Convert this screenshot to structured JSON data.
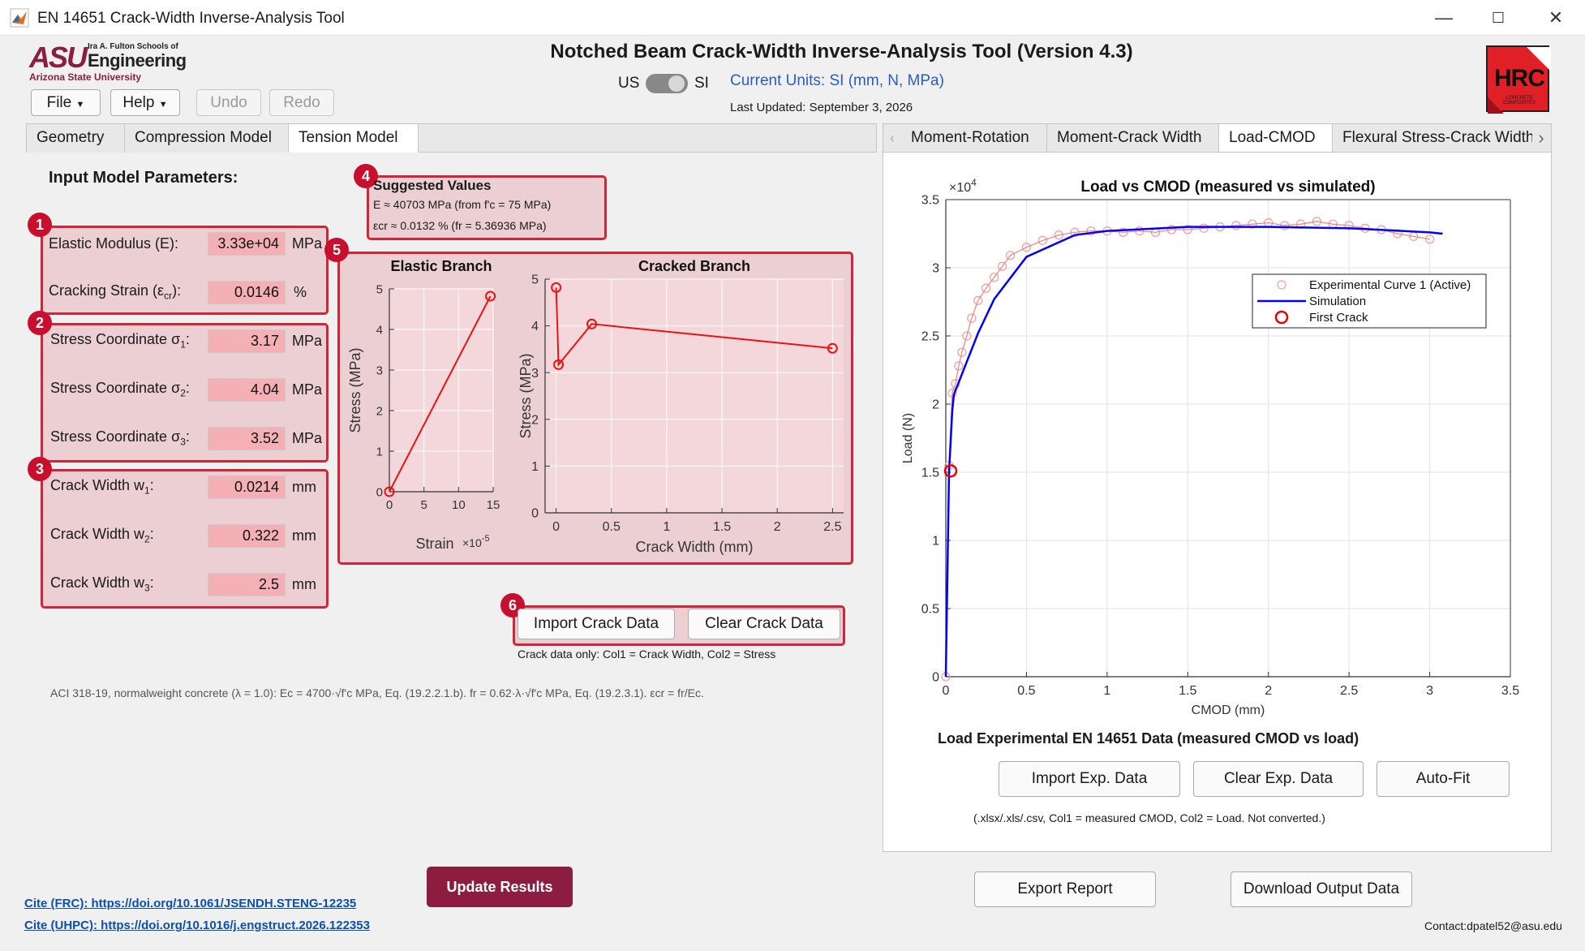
{
  "window": {
    "title": "EN 14651 Crack-Width Inverse-Analysis Tool"
  },
  "logo": {
    "asu": "ASU",
    "school_line1": "Ira A. Fulton Schools of",
    "school_line2": "Engineering",
    "university": "Arizona State University",
    "hrc": "HRC",
    "hrc_small": "CONCRETE COMPOSITES"
  },
  "app": {
    "title": "Notched Beam Crack-Width Inverse-Analysis Tool (Version 4.3)",
    "unit_us": "US",
    "unit_si": "SI",
    "current_units": "Current Units: SI (mm, N, MPa)",
    "last_updated": "Last Updated: September 3, 2026"
  },
  "toolbar": {
    "file": "File",
    "help": "Help",
    "undo": "Undo",
    "redo": "Redo"
  },
  "left_tabs": [
    "Geometry",
    "Compression Model",
    "Tension Model"
  ],
  "left_panel": {
    "heading": "Input Model Parameters:",
    "badges": [
      "1",
      "2",
      "3",
      "4",
      "5",
      "6"
    ],
    "elastic_modulus": {
      "label": "Elastic Modulus (E):",
      "value": "3.33e+04",
      "unit": "MPa"
    },
    "cracking_strain": {
      "label_pre": "Cracking Strain (ε",
      "label_sub": "cr",
      "label_post": "):",
      "value": "0.0146",
      "unit": "%"
    },
    "sigma1": {
      "label_pre": "Stress Coordinate σ",
      "label_sub": "1",
      "label_post": ":",
      "value": "3.17",
      "unit": "MPa"
    },
    "sigma2": {
      "label_pre": "Stress Coordinate σ",
      "label_sub": "2",
      "label_post": ":",
      "value": "4.04",
      "unit": "MPa"
    },
    "sigma3": {
      "label_pre": "Stress Coordinate σ",
      "label_sub": "3",
      "label_post": ":",
      "value": "3.52",
      "unit": "MPa"
    },
    "w1": {
      "label_pre": "Crack Width w",
      "label_sub": "1",
      "label_post": ":",
      "value": "0.0214",
      "unit": "mm"
    },
    "w2": {
      "label_pre": "Crack Width w",
      "label_sub": "2",
      "label_post": ":",
      "value": "0.322",
      "unit": "mm"
    },
    "w3": {
      "label_pre": "Crack Width w",
      "label_sub": "3",
      "label_post": ":",
      "value": "2.5",
      "unit": "mm"
    },
    "suggested": {
      "title": "Suggested Values",
      "line1": "E ≈ 40703 MPa  (from f'c = 75 MPa)",
      "line2": "εcr ≈ 0.0132 %  (fr = 5.36936 MPa)"
    },
    "import_crack": "Import Crack Data",
    "clear_crack": "Clear Crack Data",
    "crack_note": "Crack data only: Col1 = Crack Width, Col2 = Stress",
    "aci_note": "ACI 318-19, normalweight concrete (λ = 1.0): Ec = 4700·√f'c MPa, Eq. (19.2.2.1.b). fr = 0.62·λ·√f'c MPa, Eq. (19.2.3.1). εcr = fr/Ec."
  },
  "right_tabs": [
    "Moment-Rotation",
    "Moment-Crack Width",
    "Load-CMOD",
    "Flexural Stress-Crack Width"
  ],
  "right_panel": {
    "load_heading": "Load Experimental EN 14651 Data (measured CMOD vs load)",
    "import_exp": "Import Exp. Data",
    "clear_exp": "Clear Exp. Data",
    "auto_fit": "Auto-Fit",
    "exp_note": "(.xlsx/.xls/.csv, Col1 = measured CMOD, Col2 = Load. Not converted.)"
  },
  "bottom": {
    "update": "Update Results",
    "export": "Export Report",
    "download": "Download Output Data",
    "cite_frc": "Cite (FRC): https://doi.org/10.1061/JSENDH.STENG-12235",
    "cite_uhpc": "Cite (UHPC): https://doi.org/10.1016/j.engstruct.2026.122353",
    "contact": "Contact:dpatel52@asu.edu"
  },
  "colors": {
    "accent_red": "#d1263a",
    "group_fill": "#eccfd3",
    "field_fill": "#f4b0b5",
    "update_btn": "#8c1d40",
    "link": "#0b4fb0",
    "sim_line": "#0000ff",
    "exp_marker": "#f4a0a0"
  },
  "chart_data": [
    {
      "type": "line",
      "title": "Elastic Branch",
      "xlabel": "Strain",
      "x_multiplier": "×10^-5",
      "ylabel": "Stress (MPa)",
      "xlim": [
        0,
        15
      ],
      "ylim": [
        0,
        5
      ],
      "xticks": [
        "0",
        "5",
        "10",
        "15"
      ],
      "yticks": [
        "0",
        "1",
        "2",
        "3",
        "4",
        "5"
      ],
      "series": [
        {
          "x": [
            0,
            14.6
          ],
          "y": [
            0,
            4.82
          ]
        }
      ]
    },
    {
      "type": "line",
      "title": "Cracked Branch",
      "xlabel": "Crack Width (mm)",
      "ylabel": "Stress (MPa)",
      "xlim": [
        -0.1,
        2.6
      ],
      "ylim": [
        0,
        5
      ],
      "xticks": [
        "0",
        "0.5",
        "1",
        "1.5",
        "2",
        "2.5"
      ],
      "yticks": [
        "0",
        "1",
        "2",
        "3",
        "4",
        "5"
      ],
      "series": [
        {
          "x": [
            0,
            0.0214,
            0.322,
            2.5
          ],
          "y": [
            4.82,
            3.17,
            4.04,
            3.52
          ]
        }
      ]
    },
    {
      "type": "line",
      "title": "Load vs CMOD (measured vs simulated)",
      "xlabel": "CMOD (mm)",
      "ylabel": "Load (N)",
      "y_multiplier": "×10^4",
      "xlim": [
        0,
        3.5
      ],
      "ylim": [
        0,
        35000
      ],
      "xticks": [
        "0",
        "0.5",
        "1",
        "1.5",
        "2",
        "2.5",
        "3",
        "3.5"
      ],
      "yticks": [
        "0",
        "0.5",
        "1",
        "1.5",
        "2",
        "2.5",
        "3",
        "3.5"
      ],
      "legend": "top-right",
      "grid": true,
      "series": [
        {
          "name": "Experimental Curve 1 (Active)",
          "marker": "circle",
          "x": [
            0.0,
            0.02,
            0.04,
            0.06,
            0.08,
            0.1,
            0.13,
            0.16,
            0.2,
            0.25,
            0.3,
            0.35,
            0.4,
            0.5,
            0.6,
            0.7,
            0.8,
            0.9,
            1.0,
            1.1,
            1.2,
            1.3,
            1.4,
            1.5,
            1.6,
            1.7,
            1.8,
            1.9,
            2.0,
            2.1,
            2.2,
            2.3,
            2.4,
            2.5,
            2.6,
            2.7,
            2.8,
            2.9,
            3.0
          ],
          "y": [
            0,
            15500,
            20800,
            21500,
            22800,
            23800,
            25000,
            26300,
            27600,
            28500,
            29300,
            30100,
            30900,
            31500,
            32000,
            32400,
            32600,
            32700,
            32700,
            32600,
            32700,
            32600,
            32800,
            32800,
            32900,
            33000,
            33100,
            33200,
            33300,
            33100,
            33200,
            33400,
            33200,
            33100,
            32900,
            32800,
            32500,
            32300,
            32100
          ]
        },
        {
          "name": "Simulation",
          "x": [
            0,
            0.02,
            0.04,
            0.05,
            0.1,
            0.2,
            0.3,
            0.5,
            0.8,
            1.0,
            1.5,
            2.0,
            2.5,
            3.0,
            3.08
          ],
          "y": [
            0,
            15000,
            19500,
            20700,
            22200,
            25200,
            27700,
            30800,
            32400,
            32700,
            33000,
            33000,
            32900,
            32600,
            32500
          ]
        },
        {
          "name": "First Crack",
          "marker": "circle",
          "x": [
            0.03
          ],
          "y": [
            15100
          ]
        }
      ]
    }
  ]
}
